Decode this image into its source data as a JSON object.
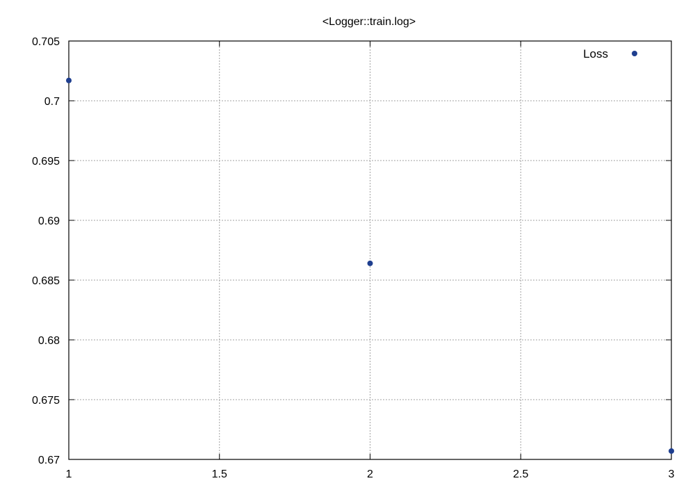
{
  "chart_data": {
    "type": "scatter",
    "title": "<Logger::train.log>",
    "xlabel": "",
    "ylabel": "",
    "xlim": [
      1,
      3
    ],
    "ylim": [
      0.67,
      0.705
    ],
    "x_ticks": [
      "1",
      "1.5",
      "2",
      "2.5",
      "3"
    ],
    "y_ticks": [
      "0.67",
      "0.675",
      "0.68",
      "0.685",
      "0.69",
      "0.695",
      "0.7",
      "0.705"
    ],
    "grid": true,
    "legend_position": "top-right",
    "series": [
      {
        "name": "Loss",
        "color": "#1f3f8f",
        "points": [
          {
            "x": 1,
            "y": 0.7017
          },
          {
            "x": 2,
            "y": 0.6864
          },
          {
            "x": 3,
            "y": 0.6707
          }
        ]
      }
    ]
  }
}
